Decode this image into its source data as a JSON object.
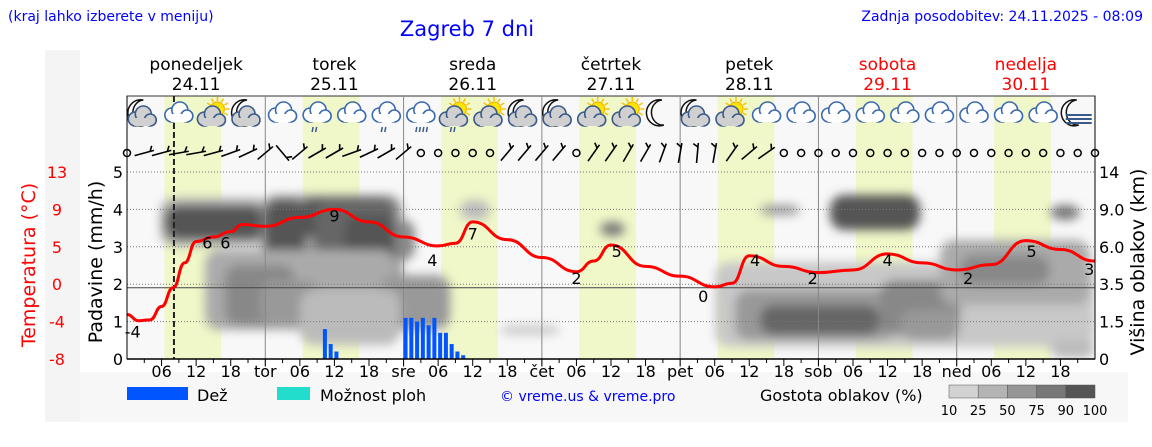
{
  "header": {
    "hint": "(kraj lahko izberete v meniju)",
    "title": "Zagreb 7 dni",
    "updated": "Zadnja posodobitev: 24.11.2025 - 08:09"
  },
  "colors": {
    "temperature": "#ff0000",
    "rain": "#0055ff",
    "shower": "#22ddcc",
    "daylight": "#f0f7c8",
    "header_text": "#0000ff",
    "weekend": "#ff0000"
  },
  "chart_data": {
    "type": "line",
    "title": "Zagreb 7 dni",
    "days": [
      {
        "name": "ponedeljek",
        "date": "24.11",
        "weekend": false
      },
      {
        "name": "torek",
        "date": "25.11",
        "weekend": false
      },
      {
        "name": "sreda",
        "date": "26.11",
        "weekend": false
      },
      {
        "name": "četrtek",
        "date": "27.11",
        "weekend": false
      },
      {
        "name": "petek",
        "date": "28.11",
        "weekend": false
      },
      {
        "name": "sobota",
        "date": "29.11",
        "weekend": true
      },
      {
        "name": "nedelja",
        "date": "30.11",
        "weekend": true
      }
    ],
    "x_tick_labels": [
      "06",
      "12",
      "18",
      "tor",
      "06",
      "12",
      "18",
      "sre",
      "06",
      "12",
      "18",
      "čet",
      "06",
      "12",
      "18",
      "pet",
      "06",
      "12",
      "18",
      "sob",
      "06",
      "12",
      "18",
      "ned",
      "06",
      "12",
      "18"
    ],
    "current_time": "24.11 08:09",
    "daylight": {
      "from": "06:30",
      "to": "16:20"
    },
    "temperature": {
      "axis_label": "Temperatura (°C)",
      "ticks": [
        "13",
        "9",
        "5",
        "0",
        "-4",
        "-8"
      ],
      "ylim": [
        -8,
        13
      ],
      "points": [
        [
          "24.11 00:00",
          -3.0
        ],
        [
          "24.11 02:00",
          -3.7
        ],
        [
          "24.11 04:00",
          -3.6
        ],
        [
          "24.11 06:00",
          -2.1
        ],
        [
          "24.11 08:00",
          0.0
        ],
        [
          "24.11 10:00",
          2.8
        ],
        [
          "24.11 12:00",
          5.2
        ],
        [
          "24.11 15:00",
          5.7
        ],
        [
          "24.11 18:00",
          6.3
        ],
        [
          "24.11 20:00",
          7.1
        ],
        [
          "25.11 00:00",
          6.9
        ],
        [
          "25.11 06:00",
          7.9
        ],
        [
          "25.11 12:00",
          8.8
        ],
        [
          "25.11 18:00",
          7.4
        ],
        [
          "26.11 00:00",
          5.7
        ],
        [
          "26.11 06:00",
          4.7
        ],
        [
          "26.11 09:00",
          5.0
        ],
        [
          "26.11 12:00",
          7.4
        ],
        [
          "26.11 18:00",
          5.4
        ],
        [
          "27.11 00:00",
          3.4
        ],
        [
          "27.11 06:00",
          1.8
        ],
        [
          "27.11 09:00",
          3.0
        ],
        [
          "27.11 12:00",
          4.8
        ],
        [
          "27.11 18:00",
          2.4
        ],
        [
          "28.11 00:00",
          1.3
        ],
        [
          "28.11 06:00",
          0.1
        ],
        [
          "28.11 09:00",
          0.5
        ],
        [
          "28.11 12:00",
          3.6
        ],
        [
          "28.11 18:00",
          2.4
        ],
        [
          "29.11 00:00",
          1.7
        ],
        [
          "29.11 06:00",
          2.0
        ],
        [
          "29.11 12:00",
          3.8
        ],
        [
          "29.11 18:00",
          2.8
        ],
        [
          "30.11 00:00",
          2.0
        ],
        [
          "30.11 06:00",
          2.6
        ],
        [
          "30.11 12:00",
          5.3
        ],
        [
          "30.11 18:00",
          4.3
        ],
        [
          "30.11 23:59",
          3.0
        ]
      ],
      "labels": [
        {
          "time": "24.11 01:00",
          "t": -4,
          "text": "-4"
        },
        {
          "time": "24.11 15:00",
          "t": 6,
          "text": "6"
        },
        {
          "time": "24.11 16:00",
          "t": 6,
          "text": "6"
        },
        {
          "time": "25.11 12:00",
          "t": 9,
          "text": "9"
        },
        {
          "time": "26.11 05:00",
          "t": 4,
          "text": "4"
        },
        {
          "time": "26.11 12:00",
          "t": 7,
          "text": "7"
        },
        {
          "time": "27.11 06:00",
          "t": 2,
          "text": "2"
        },
        {
          "time": "27.11 13:00",
          "t": 5,
          "text": "5"
        },
        {
          "time": "28.11 04:00",
          "t": 0,
          "text": "0"
        },
        {
          "time": "28.11 13:00",
          "t": 4,
          "text": "4"
        },
        {
          "time": "28.11 23:00",
          "t": 2,
          "text": "2"
        },
        {
          "time": "29.11 12:00",
          "t": 4,
          "text": "4"
        },
        {
          "time": "30.11 02:00",
          "t": 2,
          "text": "2"
        },
        {
          "time": "30.11 13:00",
          "t": 5,
          "text": "5"
        },
        {
          "time": "30.11 23:00",
          "t": 3,
          "text": "3"
        }
      ]
    },
    "precipitation": {
      "axis_label": "Padavine (mm/h)",
      "ticks": [
        "0",
        "1",
        "2",
        "3",
        "4",
        "5"
      ],
      "ylim": [
        0,
        5
      ],
      "rain_bars": [
        {
          "time": "25.11 10:00",
          "value": 0.8
        },
        {
          "time": "25.11 11:00",
          "value": 0.4
        },
        {
          "time": "25.11 12:00",
          "value": 0.2
        },
        {
          "time": "26.11 00:00",
          "value": 1.1
        },
        {
          "time": "26.11 01:00",
          "value": 1.1
        },
        {
          "time": "26.11 02:00",
          "value": 1.0
        },
        {
          "time": "26.11 03:00",
          "value": 1.1
        },
        {
          "time": "26.11 04:00",
          "value": 0.9
        },
        {
          "time": "26.11 05:00",
          "value": 1.1
        },
        {
          "time": "26.11 06:00",
          "value": 0.7
        },
        {
          "time": "26.11 07:00",
          "value": 0.7
        },
        {
          "time": "26.11 08:00",
          "value": 0.4
        },
        {
          "time": "26.11 09:00",
          "value": 0.2
        },
        {
          "time": "26.11 10:00",
          "value": 0.1
        }
      ]
    },
    "cloud_height": {
      "axis_label": "Višina oblakov (km)",
      "ticks": [
        "0",
        "1.5",
        "3.5",
        "6.0",
        "9.0",
        "14"
      ]
    },
    "weather_icons": [
      "moon-cloud",
      "cloud",
      "sun-cloud",
      "moon-cloud",
      "cloud",
      "cloud-drizzle",
      "cloud",
      "cloud-drizzle",
      "cloud-rain",
      "sun-cloud-drizzle",
      "sun-cloud",
      "moon-cloud",
      "moon-cloud",
      "sun-cloud",
      "sun-cloud",
      "moon",
      "moon-cloud",
      "sun-cloud",
      "cloud",
      "cloud",
      "cloud",
      "cloud",
      "cloud",
      "cloud",
      "cloud",
      "cloud",
      "cloud",
      "moon-fog"
    ],
    "wind": [
      "calm",
      -15,
      -15,
      -10,
      -10,
      -15,
      -20,
      -25,
      -40,
      50,
      -40,
      -30,
      -30,
      -20,
      -25,
      -30,
      -40,
      "calm",
      "calm",
      "calm",
      "calm",
      "calm",
      -50,
      -50,
      -50,
      -50,
      "calm",
      -55,
      -55,
      -60,
      -60,
      -70,
      -80,
      -85,
      -80,
      -55,
      -40,
      -35,
      "calm",
      "calm",
      "calm",
      "calm",
      "calm",
      "calm",
      "calm",
      "calm",
      "calm",
      "calm",
      "calm",
      "calm",
      "calm",
      "calm",
      "calm",
      "calm",
      "calm",
      "calm",
      "calm"
    ]
  },
  "legend": {
    "rain": "Dež",
    "shower": "Možnost ploh",
    "copyright": "© vreme.us & vreme.pro",
    "cloud_density": "Gostota oblakov (%)",
    "density_levels": [
      "10",
      "25",
      "50",
      "75",
      "90",
      "100"
    ],
    "density_colors": [
      "#d2d2d2",
      "#b4b4b4",
      "#969696",
      "#777777",
      "#555555"
    ]
  }
}
